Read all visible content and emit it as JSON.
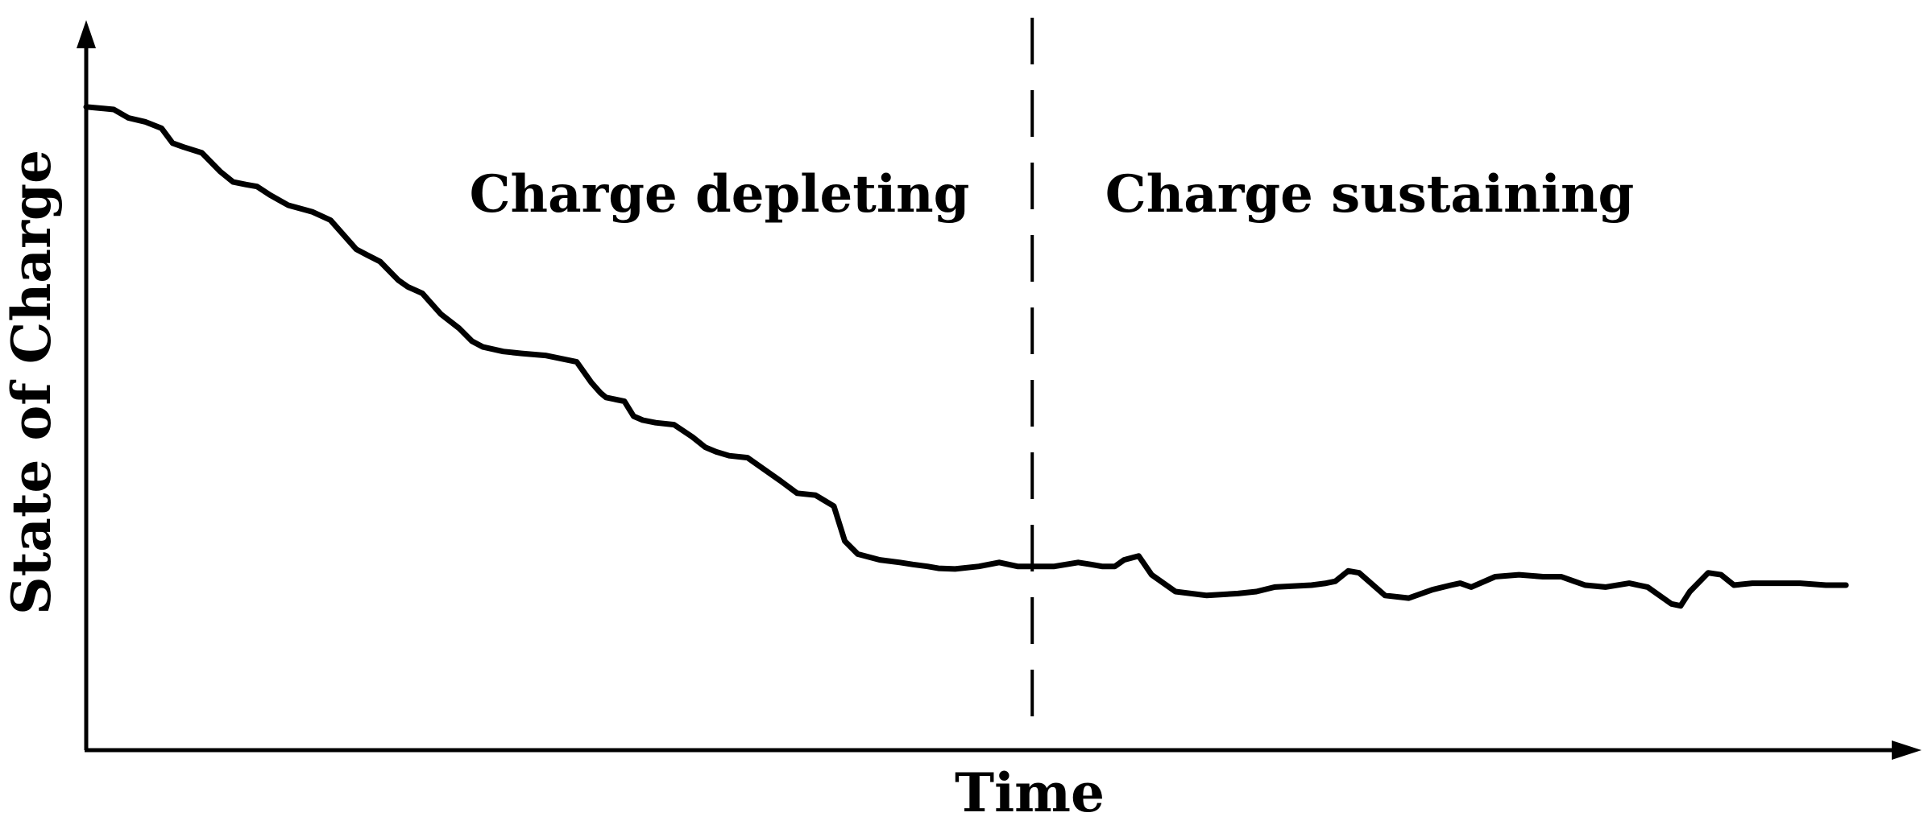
{
  "chart_data": {
    "type": "line",
    "title": "",
    "xlabel": "Time",
    "ylabel": "State of Charge",
    "xlim": [
      0,
      100
    ],
    "ylim": [
      0,
      100
    ],
    "ticks": "none",
    "grid": false,
    "legend": "none",
    "line_color": "#000000",
    "regions": [
      {
        "label": "Charge depleting",
        "x_start": 0,
        "x_end": 51.5
      },
      {
        "label": "Charge sustaining",
        "x_start": 51.5,
        "x_end": 100
      }
    ],
    "divider": {
      "x": 51.5,
      "style": "dashed"
    },
    "series": [
      {
        "x": [
          0,
          1.5,
          2.3,
          3.2,
          4.1,
          4.7,
          5.3,
          6.3,
          7.3,
          8.0,
          8.7,
          9.3,
          10.0,
          11.0,
          12.3,
          13.3,
          14.7,
          15.3,
          16.0,
          17.0,
          17.5,
          18.3,
          19.3,
          20.3,
          21.0,
          21.6,
          22.7,
          23.7,
          25.0,
          26.7,
          27.5,
          28.0,
          28.3,
          29.3,
          29.8,
          30.3,
          31.0,
          32.0,
          33.0,
          33.7,
          34.3,
          35.0,
          36.0,
          37.3,
          37.8,
          38.7,
          39.7,
          40.7,
          41.3,
          42.0,
          43.2,
          44.3,
          45.0,
          45.8,
          46.4,
          47.3,
          48.6,
          49.7,
          50.7,
          51.5,
          52.7,
          54.0,
          54.7,
          55.3,
          56.0,
          56.5,
          57.3,
          58.0,
          59.3,
          61.0,
          62.7,
          63.7,
          64.7,
          66.7,
          67.5,
          68.0,
          68.7,
          69.3,
          70.7,
          72.0,
          73.3,
          74.3,
          74.8,
          75.4,
          76.7,
          78.0,
          79.3,
          80.3,
          81.0,
          81.6,
          82.7,
          84.0,
          85.0,
          86.3,
          86.8,
          87.3,
          88.3,
          89.0,
          89.7,
          90.7,
          92.0,
          93.3,
          94.7,
          95.8
        ],
        "y": [
          99.4,
          99.0,
          97.7,
          97.1,
          96.1,
          93.8,
          93.2,
          92.3,
          89.4,
          87.8,
          87.4,
          87.1,
          85.8,
          84.2,
          83.2,
          81.9,
          77.4,
          76.5,
          75.5,
          72.6,
          71.6,
          70.6,
          67.4,
          65.2,
          63.2,
          62.3,
          61.6,
          61.3,
          61.0,
          60.0,
          56.8,
          55.2,
          54.5,
          53.9,
          51.6,
          51.0,
          50.6,
          50.3,
          48.4,
          46.8,
          46.1,
          45.5,
          45.2,
          42.6,
          41.6,
          39.7,
          39.4,
          37.7,
          32.3,
          30.3,
          29.4,
          29.0,
          28.7,
          28.4,
          28.1,
          28.0,
          28.4,
          29.0,
          28.4,
          28.4,
          28.4,
          29.0,
          28.7,
          28.4,
          28.4,
          29.4,
          30.0,
          27.1,
          24.5,
          23.9,
          24.2,
          24.5,
          25.2,
          25.5,
          25.8,
          26.1,
          27.7,
          27.4,
          23.9,
          23.5,
          24.8,
          25.5,
          25.8,
          25.2,
          26.8,
          27.1,
          26.8,
          26.8,
          26.1,
          25.5,
          25.2,
          25.8,
          25.2,
          22.6,
          22.3,
          24.5,
          27.4,
          27.1,
          25.5,
          25.8,
          25.8,
          25.8,
          25.5,
          25.5
        ]
      }
    ]
  }
}
